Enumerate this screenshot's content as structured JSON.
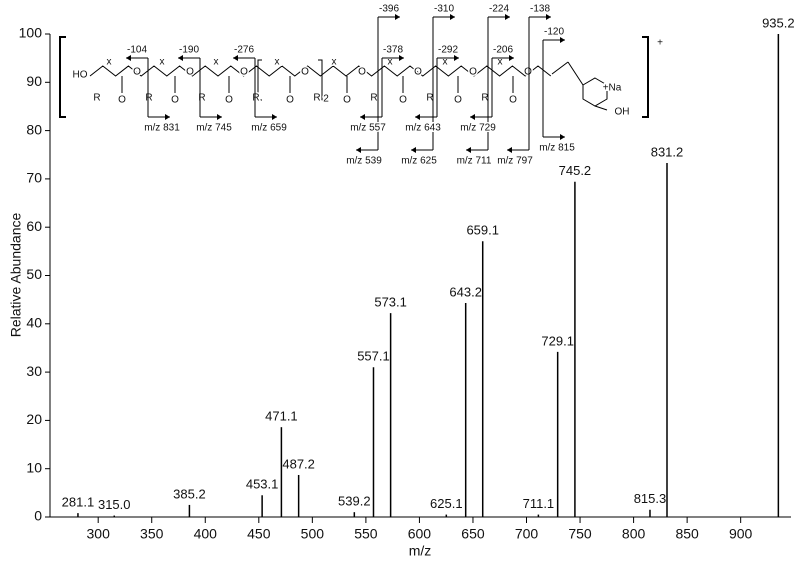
{
  "chart_data": {
    "type": "stick",
    "xlabel": "m/z",
    "ylabel": "Relative Abundance",
    "color": "#000000",
    "xlim": [
      255,
      947
    ],
    "xticks": [
      300,
      350,
      400,
      450,
      500,
      550,
      600,
      650,
      700,
      750,
      800,
      850,
      900
    ],
    "ylim": [
      0,
      100
    ],
    "yticks": [
      0,
      10,
      20,
      30,
      40,
      50,
      60,
      70,
      80,
      90,
      100
    ],
    "x": [
      281.1,
      315.0,
      385.2,
      453.1,
      471.1,
      487.2,
      539.2,
      557.1,
      573.1,
      625.1,
      643.2,
      659.1,
      711.1,
      729.1,
      745.2,
      815.3,
      831.2,
      935.2
    ],
    "x_labels": [
      "281.1",
      "315.0",
      "385.2",
      "453.1",
      "471.1",
      "487.2",
      "539.2",
      "557.1",
      "573.1",
      "625.1",
      "643.2",
      "659.1",
      "711.1",
      "729.1",
      "745.2",
      "815.3",
      "831.2",
      "935.2"
    ],
    "values": [
      0.8,
      0.3,
      2.5,
      4.5,
      18.6,
      8.7,
      1,
      31,
      42.2,
      0.5,
      44.3,
      57.1,
      0.5,
      34.2,
      69.4,
      1.5,
      73.3,
      100
    ],
    "structure": {
      "atoms": [
        "HO",
        "R",
        "x",
        "O",
        "O",
        "R",
        "x",
        "O",
        "O",
        "R",
        "x",
        "O",
        "O",
        "R",
        "x",
        "O",
        "O",
        "R",
        "x",
        "O",
        "O",
        "R",
        "x",
        "O",
        "O",
        "R",
        "x",
        "O",
        "O",
        "R",
        "x",
        "O",
        "O",
        "2",
        "OH",
        "+Na",
        "+"
      ],
      "losses": [
        "-104",
        "-190",
        "-276",
        "-396",
        "-378",
        "-310",
        "-292",
        "-224",
        "-206",
        "-138",
        "-120"
      ],
      "fragments": [
        "m/z 831",
        "m/z 745",
        "m/z 659",
        "m/z 539",
        "m/z 557",
        "m/z 625",
        "m/z 643",
        "m/z 711",
        "m/z 729",
        "m/z 797",
        "m/z 815"
      ]
    }
  }
}
